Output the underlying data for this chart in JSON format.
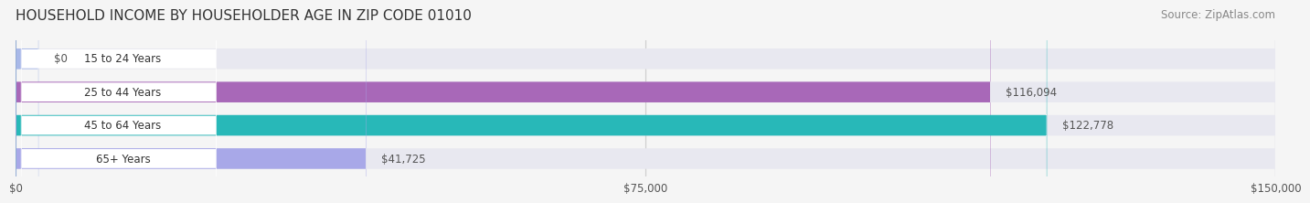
{
  "title": "HOUSEHOLD INCOME BY HOUSEHOLDER AGE IN ZIP CODE 01010",
  "source": "Source: ZipAtlas.com",
  "categories": [
    "15 to 24 Years",
    "25 to 44 Years",
    "45 to 64 Years",
    "65+ Years"
  ],
  "values": [
    0,
    116094,
    122778,
    41725
  ],
  "bar_colors": [
    "#a8b8e8",
    "#a868b8",
    "#28b8b8",
    "#a8a8e8"
  ],
  "label_colors": [
    "#555555",
    "#ffffff",
    "#ffffff",
    "#555555"
  ],
  "value_labels": [
    "$0",
    "$116,094",
    "$122,778",
    "$41,725"
  ],
  "xlim": [
    0,
    150000
  ],
  "xticks": [
    0,
    75000,
    150000
  ],
  "xtick_labels": [
    "$0",
    "$75,000",
    "$150,000"
  ],
  "background_color": "#f5f5f5",
  "bar_background_color": "#e8e8f0",
  "title_fontsize": 11,
  "source_fontsize": 8.5
}
